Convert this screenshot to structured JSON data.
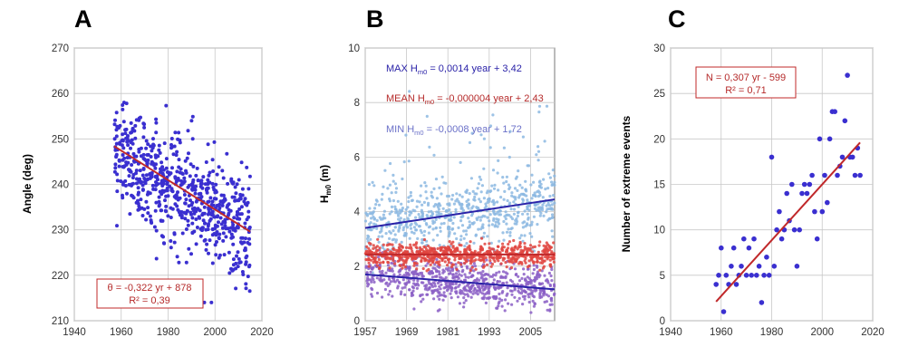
{
  "colors": {
    "point": "#3a2fd0",
    "trend_red": "#c0282a",
    "trend_blue": "#2a22a8",
    "max_pts": "#8cb9e2",
    "mean_pts": "#e0453f",
    "min_pts": "#8b5fc6",
    "grid": "#c8c8c8",
    "label_red": "#b52a2a",
    "label_blue": "#2a22a8",
    "label_lblue": "#6a70c8"
  },
  "chart_data": [
    {
      "panel": "A",
      "type": "scatter",
      "ylabel": "Angle (deg)",
      "xlabel": "",
      "xlim": [
        1940,
        2020
      ],
      "ylim": [
        210,
        270
      ],
      "xticks": [
        "1940",
        "1960",
        "1980",
        "2000",
        "2020"
      ],
      "yticks": [
        "210",
        "220",
        "230",
        "240",
        "250",
        "260",
        "270"
      ],
      "grid": true,
      "series": [
        {
          "kind": "points",
          "x_range": [
            1957,
            2015
          ],
          "approx_count": 680,
          "fit": {
            "slope": -0.322,
            "intercept": 878
          },
          "spread_sd": 6,
          "color_key": "point"
        }
      ],
      "trend_lines": [
        {
          "x": [
            1957,
            2015
          ],
          "y": [
            248.4,
            229.6
          ],
          "color_key": "trend_red"
        }
      ],
      "annotation": {
        "line1": "θ = -0,322 yr + 878",
        "line2": "R² = 0,39",
        "position": "bottom-center"
      }
    },
    {
      "panel": "B",
      "type": "scatter",
      "ylabel": "Hm0 (m)",
      "xlabel": "",
      "xlim": [
        1957,
        2012
      ],
      "ylim": [
        0,
        10
      ],
      "xticks": [
        "1957",
        "1969",
        "1981",
        "1993",
        "2005"
      ],
      "yticks": [
        "0",
        "2",
        "4",
        "6",
        "8",
        "10"
      ],
      "grid": true,
      "series": [
        {
          "kind": "points",
          "x_range": [
            1957,
            2012
          ],
          "approx_count": 700,
          "fit": {
            "slope": 0.0014,
            "intercept": 3.42
          },
          "spread_sd": 0.65,
          "color_key": "max_pts"
        },
        {
          "kind": "points",
          "x_range": [
            1957,
            2012
          ],
          "approx_count": 700,
          "fit": {
            "slope": -4e-06,
            "intercept": 2.43
          },
          "spread_sd": 0.22,
          "color_key": "mean_pts"
        },
        {
          "kind": "points",
          "x_range": [
            1957,
            2012
          ],
          "approx_count": 700,
          "fit": {
            "slope": -0.0008,
            "intercept": 1.72
          },
          "spread_sd": 0.4,
          "color_key": "min_pts"
        }
      ],
      "trend_lines": [
        {
          "x": [
            1957,
            2012
          ],
          "y": [
            3.4,
            4.45
          ],
          "color_key": "trend_blue"
        },
        {
          "x": [
            1957,
            2012
          ],
          "y": [
            2.43,
            2.43
          ],
          "color_key": "trend_red"
        },
        {
          "x": [
            1957,
            2012
          ],
          "y": [
            1.7,
            1.15
          ],
          "color_key": "trend_blue"
        }
      ],
      "legend_lines": [
        {
          "prefix": "MAX",
          "sym": "H",
          "sub": "m0",
          "eq": "= 0,0014 year + 3,42",
          "color_key": "label_blue"
        },
        {
          "prefix": "MEAN",
          "sym": "H",
          "sub": "m0",
          "eq": "= -0,000004 year + 2,43",
          "color_key": "label_red"
        },
        {
          "prefix": "MIN",
          "sym": "H",
          "sub": "m0",
          "eq": "= -0,0008 year + 1,72",
          "color_key": "label_lblue"
        }
      ]
    },
    {
      "panel": "C",
      "type": "scatter",
      "ylabel": "Number of extreme events",
      "xlabel": "",
      "xlim": [
        1940,
        2020
      ],
      "ylim": [
        0,
        30
      ],
      "xticks": [
        "1940",
        "1960",
        "1980",
        "2000",
        "2020"
      ],
      "yticks": [
        "0",
        "5",
        "10",
        "15",
        "20",
        "25",
        "30"
      ],
      "grid": true,
      "x": [
        1958,
        1959,
        1960,
        1961,
        1962,
        1963,
        1964,
        1965,
        1966,
        1967,
        1968,
        1969,
        1970,
        1971,
        1972,
        1973,
        1974,
        1975,
        1976,
        1977,
        1978,
        1979,
        1980,
        1981,
        1982,
        1983,
        1984,
        1985,
        1986,
        1987,
        1988,
        1989,
        1990,
        1991,
        1992,
        1993,
        1994,
        1995,
        1996,
        1997,
        1998,
        1999,
        2000,
        2001,
        2002,
        2003,
        2004,
        2005,
        2006,
        2007,
        2008,
        2009,
        2010,
        2011,
        2012,
        2013,
        2014,
        2015
      ],
      "y": [
        4,
        5,
        8,
        1,
        5,
        4,
        6,
        8,
        4,
        5,
        6,
        9,
        5,
        8,
        5,
        9,
        5,
        6,
        2,
        5,
        7,
        5,
        18,
        6,
        10,
        12,
        9,
        10,
        14,
        11,
        15,
        10,
        6,
        10,
        14,
        15,
        14,
        15,
        16,
        12,
        9,
        20,
        12,
        16,
        13,
        20,
        23,
        23,
        16,
        17,
        18,
        22,
        27,
        18,
        18,
        16,
        19,
        16
      ],
      "trend_lines": [
        {
          "x": [
            1958,
            2015
          ],
          "y": [
            2.1,
            19.6
          ],
          "color_key": "trend_red"
        }
      ],
      "annotation": {
        "line1": "N = 0,307 yr - 599",
        "line2": "R² = 0,71",
        "position": "top-left"
      }
    }
  ]
}
